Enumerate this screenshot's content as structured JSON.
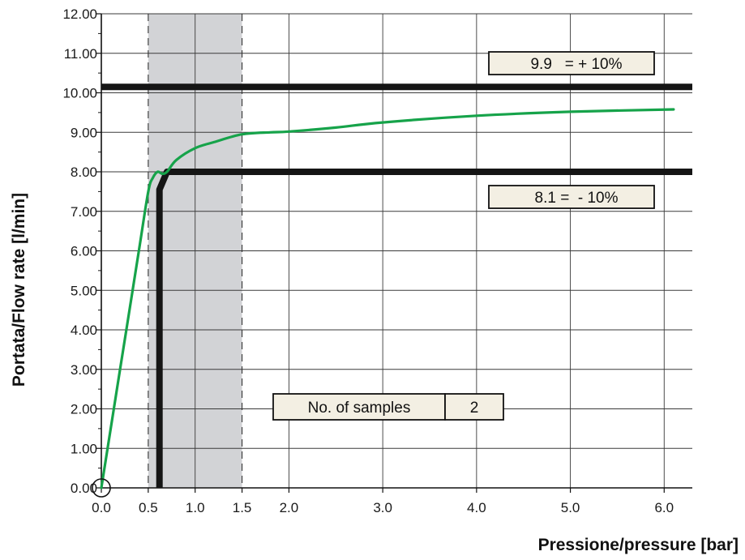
{
  "chart_data": {
    "type": "line",
    "xlabel": "Pressione/pressure [bar]",
    "ylabel": "Portata/Flow rate [l/min]",
    "xlim": [
      0,
      6.3
    ],
    "ylim": [
      0,
      12
    ],
    "x_ticks": [
      0.0,
      0.5,
      1.0,
      1.5,
      2.0,
      3.0,
      4.0,
      5.0,
      6.0
    ],
    "x_tick_labels": [
      "0.0",
      "0.5",
      "1.0",
      "1.5",
      "2.0",
      "3.0",
      "4.0",
      "5.0",
      "6.0"
    ],
    "x_gridlines": [
      1.0,
      2.0,
      3.0,
      4.0,
      5.0,
      6.0
    ],
    "y_ticks": [
      0,
      1,
      2,
      3,
      4,
      5,
      6,
      7,
      8,
      9,
      10,
      11,
      12
    ],
    "y_tick_labels": [
      "0.00",
      "1.00",
      "2.00",
      "3.00",
      "4.00",
      "5.00",
      "6.00",
      "7.00",
      "8.00",
      "9.00",
      "10.00",
      "11.00",
      "12.00"
    ],
    "grid": true,
    "shaded_band": {
      "x": [
        0.5,
        1.5
      ],
      "color": "#d2d3d6"
    },
    "series": [
      {
        "color": "#16a34a",
        "x": [
          0.0,
          0.2,
          0.4,
          0.5,
          0.55,
          0.6,
          0.65,
          0.7,
          0.8,
          1.0,
          1.2,
          1.5,
          1.8,
          2.0,
          2.5,
          3.0,
          4.0,
          5.0,
          6.1
        ],
        "y": [
          0.0,
          3.0,
          6.0,
          7.5,
          7.85,
          8.0,
          7.95,
          8.0,
          8.3,
          8.6,
          8.75,
          8.95,
          9.0,
          9.02,
          9.12,
          9.25,
          9.42,
          9.52,
          9.58
        ]
      }
    ],
    "limit_lines": [
      {
        "y": 10.15,
        "label": "9.9   = + 10%"
      },
      {
        "y": 8.0,
        "x_start": 0.7,
        "label": "8.1 =  - 10%"
      }
    ],
    "black_profile": {
      "x": [
        0.62,
        0.62,
        0.7,
        6.3
      ],
      "y": [
        0.0,
        7.55,
        8.0,
        8.0
      ]
    },
    "samples_box": {
      "label": "No. of samples",
      "value": "2"
    }
  }
}
